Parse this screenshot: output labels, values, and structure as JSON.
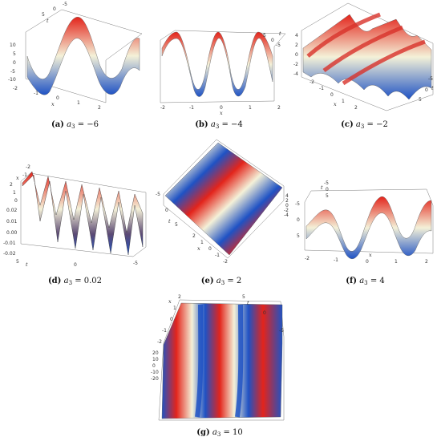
{
  "colors": {
    "wave_start": "#1f52c4",
    "wave_mid": "#f4f1d8",
    "wave_end": "#e3241b",
    "box": "#7b7b7b",
    "text": "#111111"
  },
  "panels": [
    {
      "caption": {
        "label": "(a)",
        "sym": "a",
        "sub": "3",
        "eq": " = −6"
      },
      "axes": {
        "t": "t",
        "x": "x"
      },
      "ticks": [
        "10",
        "5",
        "0",
        "-5",
        "-10",
        "-2",
        "-1",
        "0",
        "1",
        "2",
        "5",
        "0",
        "-5"
      ]
    },
    {
      "caption": {
        "label": "(b)",
        "sym": "a",
        "sub": "3",
        "eq": " = −4"
      },
      "axes": {
        "t": "t",
        "x": "x"
      },
      "ticks": [
        "-2",
        "-1",
        "0",
        "1",
        "2",
        "5",
        "0",
        "-5"
      ]
    },
    {
      "caption": {
        "label": "(c)",
        "sym": "a",
        "sub": "3",
        "eq": " = −2"
      },
      "axes": {
        "t": "t",
        "x": "x"
      },
      "ticks": [
        "4",
        "2",
        "0",
        "-2",
        "-4",
        "-2",
        "-1",
        "0",
        "1",
        "2",
        "5",
        "0",
        "-5"
      ]
    },
    {
      "caption": {
        "label": "(d)",
        "sym": "a",
        "sub": "3",
        "eq": " = 0.02"
      },
      "axes": {
        "t": "t",
        "x": "x"
      },
      "ticks": [
        "0.02",
        "0.01",
        "0.00",
        "-0.01",
        "-0.02",
        "5",
        "0",
        "-5",
        "2",
        "1",
        "0",
        "-1",
        "-2"
      ]
    },
    {
      "caption": {
        "label": "(e)",
        "sym": "a",
        "sub": "3",
        "eq": " = 2"
      },
      "axes": {
        "t": "t",
        "x": "x"
      },
      "ticks": [
        "-5",
        "0",
        "5",
        "2",
        "1",
        "0",
        "-1",
        "-2",
        "4",
        "2",
        "0",
        "-2",
        "-4"
      ]
    },
    {
      "caption": {
        "label": "(f)",
        "sym": "a",
        "sub": "3",
        "eq": " = 4"
      },
      "axes": {
        "t": "t",
        "x": "x"
      },
      "ticks": [
        "5",
        "0",
        "-5",
        "-2",
        "-1",
        "0",
        "1",
        "2",
        "-5",
        "0",
        "5"
      ]
    },
    {
      "caption": {
        "label": "(g)",
        "sym": "a",
        "sub": "3",
        "eq": " = 10"
      },
      "axes": {
        "t": "t",
        "x": "x"
      },
      "ticks": [
        "2",
        "1",
        "0",
        "-1",
        "-2",
        "5",
        "0",
        "-5",
        "20",
        "10",
        "0",
        "-10",
        "-20"
      ]
    }
  ]
}
